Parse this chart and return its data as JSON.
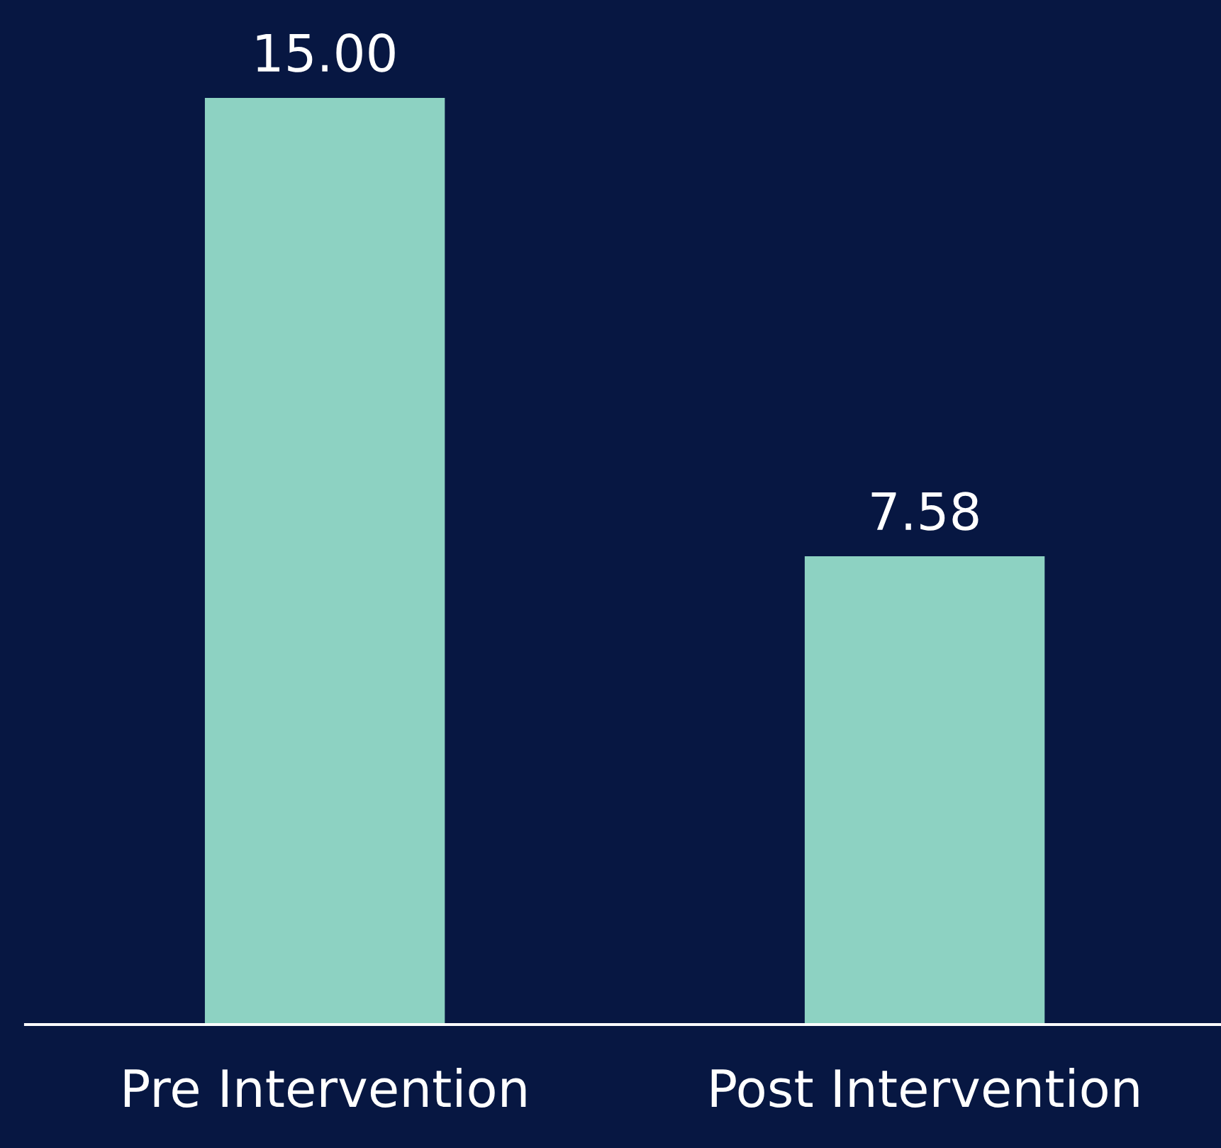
{
  "chart_data": {
    "type": "bar",
    "categories": [
      "Pre Intervention",
      "Post Intervention"
    ],
    "values": [
      15.0,
      7.58
    ],
    "value_labels": [
      "15.00",
      "7.58"
    ],
    "color": "#8dd2c2",
    "grid": false,
    "legend": false
  }
}
